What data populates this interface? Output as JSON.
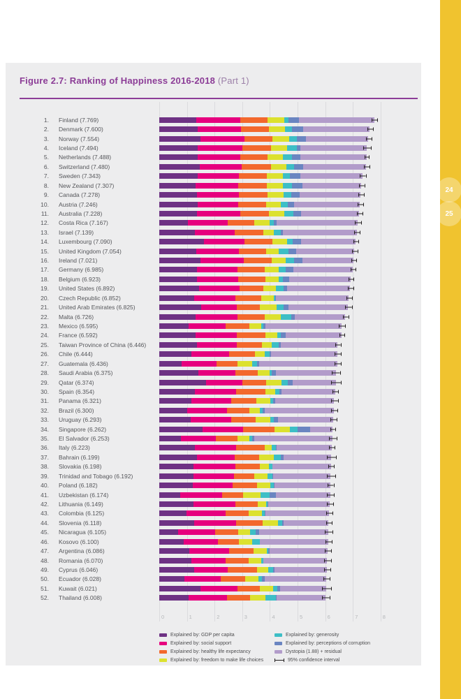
{
  "page": {
    "title_bold": "Figure 2.7: Ranking of Happiness 2016-2018",
    "title_light": " (Part 1)",
    "page_numbers": [
      "24",
      "25"
    ],
    "colors": {
      "band_yellow": "#F0C32F",
      "title_purple": "#8C3D97"
    }
  },
  "chart_data": {
    "type": "bar",
    "orientation": "horizontal",
    "stacked": true,
    "xlim": [
      0,
      8
    ],
    "x_ticks": [
      "0",
      "1",
      "2",
      "3",
      "4",
      "5",
      "6",
      "7",
      "8"
    ],
    "grid": true,
    "colors": {
      "gdp": "#6E3284",
      "social": "#E6007E",
      "health": "#F3682D",
      "freedom": "#DCE12F",
      "generosity": "#3DBEC6",
      "corruption": "#6A85C1",
      "dystopia": "#B29CCA",
      "ci": "#231F20"
    },
    "series_order": [
      "gdp",
      "social",
      "health",
      "freedom",
      "generosity",
      "corruption",
      "dystopia"
    ],
    "note": "values = [gdp, social support, healthy life expectancy, freedom, generosity, corruption]; dystopia+residual = score - sum(values); ci = 95% confidence half-width (estimated from pixels)",
    "rows": [
      {
        "rank": 1,
        "country": "Finland",
        "score": 7.769,
        "values": [
          1.34,
          1.587,
          0.986,
          0.596,
          0.153,
          0.393
        ],
        "ci": 0.09
      },
      {
        "rank": 2,
        "country": "Denmark",
        "score": 7.6,
        "values": [
          1.383,
          1.573,
          0.996,
          0.592,
          0.252,
          0.41
        ],
        "ci": 0.09
      },
      {
        "rank": 3,
        "country": "Norway",
        "score": 7.554,
        "values": [
          1.488,
          1.582,
          1.028,
          0.603,
          0.271,
          0.341
        ],
        "ci": 0.09
      },
      {
        "rank": 4,
        "country": "Iceland",
        "score": 7.494,
        "values": [
          1.38,
          1.624,
          1.026,
          0.591,
          0.354,
          0.118
        ],
        "ci": 0.13
      },
      {
        "rank": 5,
        "country": "Netherlands",
        "score": 7.488,
        "values": [
          1.396,
          1.522,
          0.999,
          0.557,
          0.322,
          0.298
        ],
        "ci": 0.07
      },
      {
        "rank": 6,
        "country": "Switzerland",
        "score": 7.48,
        "values": [
          1.452,
          1.526,
          1.052,
          0.572,
          0.263,
          0.343
        ],
        "ci": 0.09
      },
      {
        "rank": 7,
        "country": "Sweden",
        "score": 7.343,
        "values": [
          1.387,
          1.487,
          1.009,
          0.574,
          0.267,
          0.373
        ],
        "ci": 0.09
      },
      {
        "rank": 8,
        "country": "New Zealand",
        "score": 7.307,
        "values": [
          1.303,
          1.557,
          1.026,
          0.585,
          0.33,
          0.38
        ],
        "ci": 0.08
      },
      {
        "rank": 9,
        "country": "Canada",
        "score": 7.278,
        "values": [
          1.365,
          1.505,
          1.039,
          0.584,
          0.285,
          0.308
        ],
        "ci": 0.09
      },
      {
        "rank": 10,
        "country": "Austria",
        "score": 7.246,
        "values": [
          1.376,
          1.475,
          1.016,
          0.532,
          0.244,
          0.226
        ],
        "ci": 0.09
      },
      {
        "rank": 11,
        "country": "Australia",
        "score": 7.228,
        "values": [
          1.372,
          1.548,
          1.036,
          0.557,
          0.332,
          0.29
        ],
        "ci": 0.09
      },
      {
        "rank": 12,
        "country": "Costa Rica",
        "score": 7.167,
        "values": [
          1.034,
          1.441,
          0.963,
          0.558,
          0.144,
          0.093
        ],
        "ci": 0.11
      },
      {
        "rank": 13,
        "country": "Israel",
        "score": 7.139,
        "values": [
          1.276,
          1.455,
          1.029,
          0.371,
          0.261,
          0.082
        ],
        "ci": 0.09
      },
      {
        "rank": 14,
        "country": "Luxembourg",
        "score": 7.09,
        "values": [
          1.609,
          1.479,
          1.012,
          0.526,
          0.194,
          0.316
        ],
        "ci": 0.07
      },
      {
        "rank": 15,
        "country": "United Kingdom",
        "score": 7.054,
        "values": [
          1.333,
          1.538,
          0.996,
          0.45,
          0.348,
          0.278
        ],
        "ci": 0.08
      },
      {
        "rank": 16,
        "country": "Ireland",
        "score": 7.021,
        "values": [
          1.499,
          1.553,
          0.999,
          0.516,
          0.298,
          0.31
        ],
        "ci": 0.08
      },
      {
        "rank": 17,
        "country": "Germany",
        "score": 6.985,
        "values": [
          1.373,
          1.454,
          0.987,
          0.495,
          0.261,
          0.265
        ],
        "ci": 0.08
      },
      {
        "rank": 18,
        "country": "Belgium",
        "score": 6.923,
        "values": [
          1.356,
          1.504,
          0.986,
          0.473,
          0.16,
          0.21
        ],
        "ci": 0.08
      },
      {
        "rank": 19,
        "country": "United States",
        "score": 6.892,
        "values": [
          1.433,
          1.457,
          0.874,
          0.454,
          0.28,
          0.128
        ],
        "ci": 0.09
      },
      {
        "rank": 20,
        "country": "Czech Republic",
        "score": 6.852,
        "values": [
          1.269,
          1.487,
          0.92,
          0.457,
          0.046,
          0.036
        ],
        "ci": 0.09
      },
      {
        "rank": 21,
        "country": "United Arab Emirates",
        "score": 6.825,
        "values": [
          1.503,
          1.31,
          0.825,
          0.598,
          0.262,
          0.182
        ],
        "ci": 0.11
      },
      {
        "rank": 22,
        "country": "Malta",
        "score": 6.726,
        "values": [
          1.3,
          1.52,
          0.999,
          0.564,
          0.375,
          0.151
        ],
        "ci": 0.08
      },
      {
        "rank": 23,
        "country": "Mexico",
        "score": 6.595,
        "values": [
          1.07,
          1.323,
          0.861,
          0.433,
          0.074,
          0.073
        ],
        "ci": 0.1
      },
      {
        "rank": 24,
        "country": "France",
        "score": 6.592,
        "values": [
          1.324,
          1.472,
          1.045,
          0.436,
          0.111,
          0.183
        ],
        "ci": 0.08
      },
      {
        "rank": 25,
        "country": "Taiwan Province of China",
        "score": 6.446,
        "values": [
          1.368,
          1.43,
          0.914,
          0.351,
          0.242,
          0.097
        ],
        "ci": 0.08
      },
      {
        "rank": 26,
        "country": "Chile",
        "score": 6.444,
        "values": [
          1.159,
          1.369,
          0.92,
          0.357,
          0.187,
          0.056
        ],
        "ci": 0.1
      },
      {
        "rank": 27,
        "country": "Guatemala",
        "score": 6.436,
        "values": [
          0.8,
          1.269,
          0.746,
          0.535,
          0.175,
          0.078
        ],
        "ci": 0.11
      },
      {
        "rank": 28,
        "country": "Saudi Arabia",
        "score": 6.375,
        "values": [
          1.403,
          1.357,
          0.795,
          0.439,
          0.08,
          0.132
        ],
        "ci": 0.13
      },
      {
        "rank": 29,
        "country": "Qatar",
        "score": 6.374,
        "values": [
          1.684,
          1.313,
          0.871,
          0.555,
          0.22,
          0.167
        ],
        "ci": 0.16
      },
      {
        "rank": 30,
        "country": "Spain",
        "score": 6.354,
        "values": [
          1.286,
          1.484,
          1.062,
          0.362,
          0.153,
          0.079
        ],
        "ci": 0.09
      },
      {
        "rank": 31,
        "country": "Panama",
        "score": 6.321,
        "values": [
          1.149,
          1.442,
          0.91,
          0.516,
          0.109,
          0.054
        ],
        "ci": 0.11
      },
      {
        "rank": 32,
        "country": "Brazil",
        "score": 6.3,
        "values": [
          1.004,
          1.439,
          0.802,
          0.39,
          0.099,
          0.086
        ],
        "ci": 0.1
      },
      {
        "rank": 33,
        "country": "Uruguay",
        "score": 6.293,
        "values": [
          1.124,
          1.465,
          0.891,
          0.523,
          0.127,
          0.15
        ],
        "ci": 0.1
      },
      {
        "rank": 34,
        "country": "Singapore",
        "score": 6.262,
        "values": [
          1.572,
          1.463,
          1.141,
          0.556,
          0.271,
          0.453
        ],
        "ci": 0.07
      },
      {
        "rank": 35,
        "country": "El Salvador",
        "score": 6.253,
        "values": [
          0.794,
          1.242,
          0.789,
          0.43,
          0.093,
          0.074
        ],
        "ci": 0.12
      },
      {
        "rank": 36,
        "country": "Italy",
        "score": 6.223,
        "values": [
          1.294,
          1.488,
          1.039,
          0.231,
          0.158,
          0.03
        ],
        "ci": 0.09
      },
      {
        "rank": 37,
        "country": "Bahrain",
        "score": 6.199,
        "values": [
          1.362,
          1.368,
          0.871,
          0.536,
          0.255,
          0.11
        ],
        "ci": 0.15
      },
      {
        "rank": 38,
        "country": "Slovakia",
        "score": 6.198,
        "values": [
          1.246,
          1.504,
          0.881,
          0.334,
          0.121,
          0.014
        ],
        "ci": 0.09
      },
      {
        "rank": 39,
        "country": "Trinidad and Tobago",
        "score": 6.192,
        "values": [
          1.231,
          1.477,
          0.713,
          0.489,
          0.185,
          0.016
        ],
        "ci": 0.14
      },
      {
        "rank": 40,
        "country": "Poland",
        "score": 6.182,
        "values": [
          1.206,
          1.438,
          0.884,
          0.483,
          0.117,
          0.05
        ],
        "ci": 0.09
      },
      {
        "rank": 41,
        "country": "Uzbekistan",
        "score": 6.174,
        "values": [
          0.745,
          1.529,
          0.756,
          0.631,
          0.322,
          0.24
        ],
        "ci": 0.12
      },
      {
        "rank": 42,
        "country": "Lithuania",
        "score": 6.149,
        "values": [
          1.238,
          1.515,
          0.818,
          0.291,
          0.043,
          0.042
        ],
        "ci": 0.1
      },
      {
        "rank": 43,
        "country": "Colombia",
        "score": 6.125,
        "values": [
          0.985,
          1.41,
          0.841,
          0.47,
          0.099,
          0.034
        ],
        "ci": 0.1
      },
      {
        "rank": 44,
        "country": "Slovenia",
        "score": 6.118,
        "values": [
          1.258,
          1.523,
          0.953,
          0.564,
          0.144,
          0.057
        ],
        "ci": 0.09
      },
      {
        "rank": 45,
        "country": "Nicaragua",
        "score": 6.105,
        "values": [
          0.694,
          1.325,
          0.835,
          0.435,
          0.2,
          0.127
        ],
        "ci": 0.12
      },
      {
        "rank": 46,
        "country": "Kosovo",
        "score": 6.1,
        "values": [
          0.882,
          1.232,
          0.758,
          0.489,
          0.262,
          0.006
        ],
        "ci": 0.1
      },
      {
        "rank": 47,
        "country": "Argentina",
        "score": 6.086,
        "values": [
          1.092,
          1.432,
          0.881,
          0.471,
          0.066,
          0.05
        ],
        "ci": 0.1
      },
      {
        "rank": 48,
        "country": "Romania",
        "score": 6.07,
        "values": [
          1.162,
          1.232,
          0.825,
          0.462,
          0.083,
          0.005
        ],
        "ci": 0.11
      },
      {
        "rank": 49,
        "country": "Cyprus",
        "score": 6.046,
        "values": [
          1.263,
          1.223,
          1.042,
          0.406,
          0.19,
          0.041
        ],
        "ci": 0.1
      },
      {
        "rank": 50,
        "country": "Ecuador",
        "score": 6.028,
        "values": [
          0.912,
          1.312,
          0.868,
          0.498,
          0.126,
          0.087
        ],
        "ci": 0.1
      },
      {
        "rank": 51,
        "country": "Kuwait",
        "score": 6.021,
        "values": [
          1.5,
          1.319,
          0.808,
          0.493,
          0.142,
          0.097
        ],
        "ci": 0.15
      },
      {
        "rank": 52,
        "country": "Thailand",
        "score": 6.008,
        "values": [
          1.05,
          1.409,
          0.828,
          0.557,
          0.359,
          0.028
        ],
        "ci": 0.12
      }
    ]
  },
  "legend": {
    "columns": [
      [
        {
          "label": "Explained by: GDP per capita",
          "key": "gdp"
        },
        {
          "label": "Explained by: social support",
          "key": "social"
        },
        {
          "label": "Explained by: healthy life expectancy",
          "key": "health"
        },
        {
          "label": "Explained by: freedom to make life choices",
          "key": "freedom"
        }
      ],
      [
        {
          "label": "Explained by: generosity",
          "key": "generosity"
        },
        {
          "label": "Explained by: perceptions of corruption",
          "key": "corruption"
        },
        {
          "label": "Dystopia (1.88) + residual",
          "key": "dystopia"
        },
        {
          "label": "95% confidence interval",
          "key": "ci"
        }
      ]
    ]
  }
}
